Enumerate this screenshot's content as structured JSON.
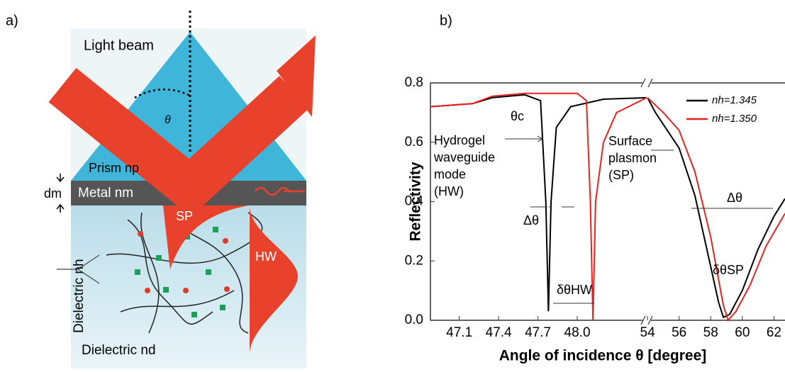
{
  "panel_labels": [
    "a)",
    "b)"
  ],
  "diagram": {
    "light_beam": "Light beam",
    "theta": "θ",
    "prism": "Prism np",
    "thickness": "dm",
    "metal": "Metal nm",
    "sp": "SP",
    "hw": "HW",
    "dielectric_h": "Dielectric nh",
    "dielectric_d": "Dielectric nd"
  },
  "chart_data": {
    "type": "line",
    "y_label": "Reflectivity",
    "x_label": "Angle of incidence θ [degree]",
    "ylim": [
      0,
      0.8
    ],
    "yticks": [
      {
        "value": 0,
        "label": "0.0"
      },
      0.2,
      0.4,
      0.6,
      0.8
    ],
    "x_segments": [
      {
        "xlim": [
          46.88,
          48.53
        ],
        "xticks": [
          47.1,
          47.4,
          47.7,
          {
            "value": 48,
            "label": "48.0"
          }
        ]
      },
      {
        "xlim": [
          53.95,
          62.7
        ],
        "xticks": [
          54,
          56,
          58,
          60,
          62
        ]
      }
    ],
    "legend": "upper right",
    "series": [
      {
        "name": "nh=1.345",
        "color": "#000000",
        "x": [
          46.88,
          47.2,
          47.35,
          47.6,
          47.72,
          47.76,
          47.78,
          47.8,
          47.84,
          47.95,
          48.2,
          48.53,
          null,
          54,
          54.5,
          55,
          56,
          57,
          58,
          58.5,
          58.8,
          59.2,
          60,
          61,
          62,
          62.7
        ],
        "values": [
          0.72,
          0.73,
          0.75,
          0.76,
          0.74,
          0.4,
          0.03,
          0.4,
          0.65,
          0.72,
          0.745,
          0.75,
          null,
          0.75,
          0.7,
          0.66,
          0.58,
          0.42,
          0.18,
          0.06,
          0.01,
          0.02,
          0.1,
          0.24,
          0.35,
          0.41
        ]
      },
      {
        "name": "nh=1.350",
        "color": "#e8231f",
        "x": [
          46.88,
          47.2,
          47.35,
          47.6,
          48.0,
          48.07,
          48.1,
          48.12,
          48.14,
          48.2,
          48.3,
          48.53,
          null,
          54,
          55,
          56,
          57,
          58,
          58.8,
          59.1,
          59.6,
          60.5,
          61.5,
          62.7
        ],
        "values": [
          0.72,
          0.73,
          0.755,
          0.765,
          0.765,
          0.74,
          0.4,
          0,
          0.4,
          0.6,
          0.7,
          0.75,
          null,
          0.75,
          0.7,
          0.64,
          0.5,
          0.28,
          0.05,
          0,
          0.03,
          0.12,
          0.25,
          0.36
        ]
      }
    ],
    "annotations": [
      "θc",
      "Hydrogel",
      "waveguide",
      "mode",
      "(HW)",
      "Δθ",
      "δθHW",
      "Surface",
      "plasmon",
      "(SP)",
      "Δθ",
      "δθSP"
    ]
  }
}
